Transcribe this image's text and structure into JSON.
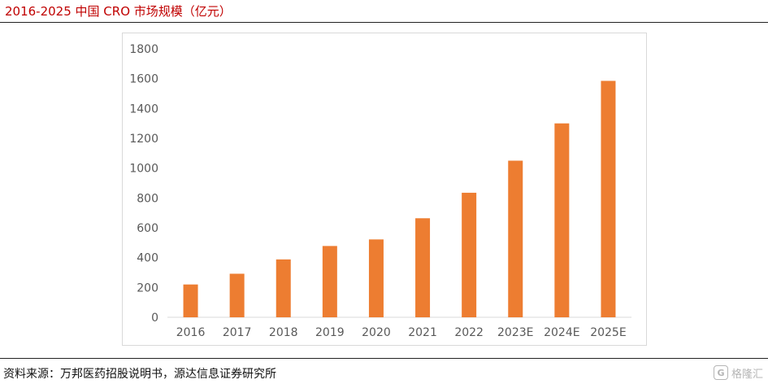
{
  "header": {
    "title": "2016-2025 中国 CRO 市场规模（亿元）"
  },
  "footer": {
    "source": "资料来源：万邦医药招股说明书，源达信息证券研究所"
  },
  "watermark": {
    "text": "格隆汇",
    "icon": "G"
  },
  "colors": {
    "title": "#c00000",
    "bar": "#ed7d31",
    "axis_text": "#595959",
    "baseline": "#d9d9d9"
  },
  "chart_data": {
    "type": "bar",
    "title": "2016-2025 中国 CRO 市场规模（亿元）",
    "categories": [
      "2016",
      "2017",
      "2018",
      "2019",
      "2020",
      "2021",
      "2022",
      "2023E",
      "2024E",
      "2025E"
    ],
    "values": [
      220,
      292,
      388,
      478,
      522,
      664,
      835,
      1050,
      1300,
      1585
    ],
    "ylim": [
      0,
      1800
    ],
    "yticks": [
      0,
      200,
      400,
      600,
      800,
      1000,
      1200,
      1400,
      1600,
      1800
    ],
    "xlabel": "",
    "ylabel": "",
    "grid": false,
    "legend": "none"
  }
}
